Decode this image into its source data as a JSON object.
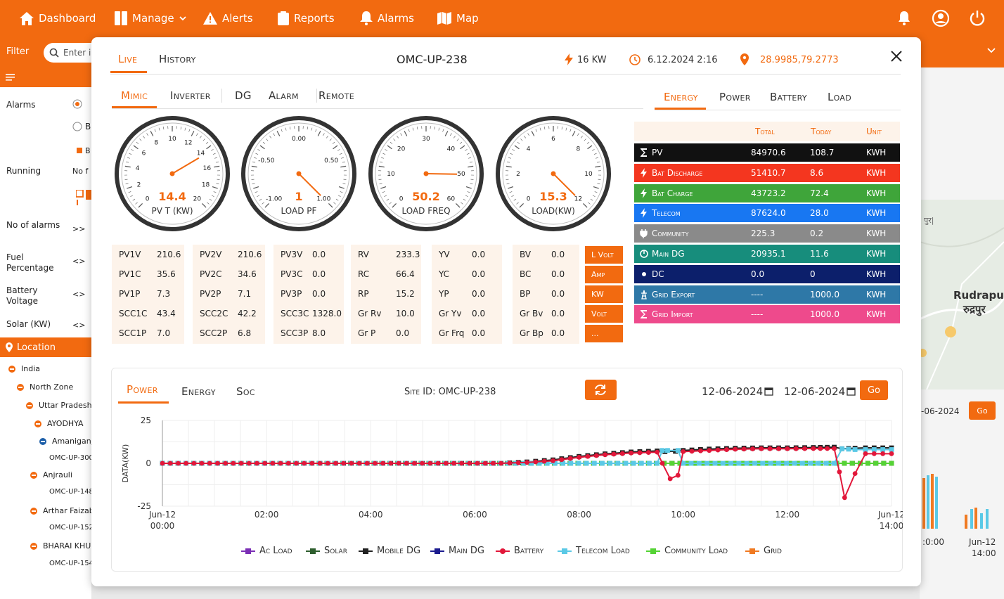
{
  "topbar": {
    "nav": [
      {
        "label": "Dashboard",
        "icon": "home-icon"
      },
      {
        "label": "Manage",
        "icon": "book-icon"
      },
      {
        "label": "Alerts",
        "icon": "warning-icon"
      },
      {
        "label": "Reports",
        "icon": "clipboard-icon"
      },
      {
        "label": "Alarms",
        "icon": "bell-icon"
      },
      {
        "label": "Map",
        "icon": "map-icon"
      }
    ]
  },
  "filter": {
    "label": "Filter",
    "placeholder": "Enter i"
  },
  "sidebar": {
    "rows": [
      {
        "label": "Alarms",
        "value": ""
      },
      {
        "label": "Running",
        "value": "No f"
      },
      {
        "label": "No of alarms",
        "value": ">>"
      },
      {
        "label": "Fuel Percentage",
        "value": "<>"
      },
      {
        "label": "Battery Voltage",
        "value": "<>"
      },
      {
        "label": "Solar (KW)",
        "value": "<>"
      }
    ],
    "radio_b": "B",
    "location_label": "Location",
    "tree": [
      "India",
      "North Zone",
      "Uttar Pradesh",
      "AYODHYA",
      "Amaniganj",
      "OMC-UP-300",
      "Anjrauli",
      "OMC-UP-148",
      "Arthar Faizab",
      "OMC-UP-152",
      "BHARAI KHURD",
      "OMC-UP-154"
    ]
  },
  "background": {
    "map_place": "Rudrapur",
    "map_place_hindi": "रुद्रपुर",
    "map_small": "पुर|",
    "date": "-06-2024",
    "go": "Go",
    "axis": [
      ":0:00",
      "Jun-12",
      "14:00"
    ]
  },
  "modal": {
    "tabs": [
      "Live",
      "History"
    ],
    "site_title": "OMC-UP-238",
    "power": "16 KW",
    "datetime": "6.12.2024 2:16",
    "coords": "28.9985,79.2773",
    "subtabs": [
      "Mimic",
      "Inverter",
      "DG",
      "Alarm",
      "Remote"
    ],
    "energy_tabs": [
      "Energy",
      "Power",
      "Battery",
      "Load"
    ],
    "gauges": [
      {
        "label": "PV T (KW)",
        "value": "14.4",
        "ticks": [
          "0",
          "2",
          "4",
          "6",
          "8",
          "10",
          "12",
          "14",
          "16",
          "18",
          "20"
        ],
        "min": 0,
        "max": 20
      },
      {
        "label": "LOAD PF",
        "value": "1",
        "ticks": [
          "-1.00",
          "-0.50",
          "0.00",
          "0.50",
          "1.00"
        ],
        "min": -1,
        "max": 1
      },
      {
        "label": "LOAD FREQ",
        "value": "50.2",
        "ticks": [
          "0",
          "10",
          "20",
          "30",
          "40",
          "50",
          "60"
        ],
        "min": 0,
        "max": 60
      },
      {
        "label": "LOAD(KW)",
        "value": "15.3",
        "ticks": [
          "0",
          "2",
          "4",
          "6",
          "8",
          "10",
          "12"
        ],
        "min": 0,
        "max": 12
      }
    ],
    "grid": [
      [
        [
          "PV1V",
          "210.6"
        ],
        [
          "PV2V",
          "210.6"
        ],
        [
          "PV3V",
          "0.0"
        ],
        [
          "RV",
          "233.3"
        ],
        [
          "YV",
          "0.0"
        ],
        [
          "BV",
          "0.0"
        ]
      ],
      [
        [
          "PV1C",
          "35.6"
        ],
        [
          "PV2C",
          "34.6"
        ],
        [
          "PV3C",
          "0.0"
        ],
        [
          "RC",
          "66.4"
        ],
        [
          "YC",
          "0.0"
        ],
        [
          "BC",
          "0.0"
        ]
      ],
      [
        [
          "PV1P",
          "7.3"
        ],
        [
          "PV2P",
          "7.1"
        ],
        [
          "PV3P",
          "0.0"
        ],
        [
          "RP",
          "15.2"
        ],
        [
          "YP",
          "0.0"
        ],
        [
          "BP",
          "0.0"
        ]
      ],
      [
        [
          "SCC1C",
          "43.4"
        ],
        [
          "SCC2C",
          "42.2"
        ],
        [
          "SCC3C",
          "1328.0"
        ],
        [
          "Gr Rv",
          "10.0"
        ],
        [
          "Gr Yv",
          "0.0"
        ],
        [
          "Gr Bv",
          "0.0"
        ]
      ],
      [
        [
          "SCC1P",
          "7.0"
        ],
        [
          "SCC2P",
          "6.8"
        ],
        [
          "SCC3P",
          "8.0"
        ],
        [
          "Gr P",
          "0.0"
        ],
        [
          "Gr Frq",
          "0.0"
        ],
        [
          "Gr Bp",
          "0.0"
        ]
      ]
    ],
    "unit_buttons": [
      "L Volt",
      "Amp",
      "KW",
      "Volt",
      "..."
    ],
    "energy_table": {
      "headers": [
        "Total",
        "Today",
        "Unit"
      ],
      "rows": [
        {
          "name": "PV",
          "total": "84970.6",
          "today": "108.7",
          "unit": "KWH",
          "color": "#111111",
          "icon": "sigma-icon"
        },
        {
          "name": "Bat Discharge",
          "total": "51410.7",
          "today": "8.6",
          "unit": "KWH",
          "color": "#f4361f",
          "icon": "bolt-icon"
        },
        {
          "name": "Bat Charge",
          "total": "43723.2",
          "today": "72.4",
          "unit": "KWH",
          "color": "#3fa53a",
          "icon": "bolt-icon"
        },
        {
          "name": "Telecom",
          "total": "87624.0",
          "today": "28.0",
          "unit": "KWH",
          "color": "#1877f2",
          "icon": "bolt-icon"
        },
        {
          "name": "Community",
          "total": "225.3",
          "today": "0.2",
          "unit": "KWH",
          "color": "#8a8a8a",
          "icon": "plug-icon"
        },
        {
          "name": "Main DG",
          "total": "20935.1",
          "today": "11.6",
          "unit": "KWH",
          "color": "#178d7c",
          "icon": "power-icon"
        },
        {
          "name": "DC",
          "total": "0.0",
          "today": "0",
          "unit": "KWH",
          "color": "#0c1f6b",
          "icon": "dot-icon"
        },
        {
          "name": "Grid Export",
          "total": "----",
          "today": "1000.0",
          "unit": "KWH",
          "color": "#2e78a7",
          "icon": "tower-icon"
        },
        {
          "name": "Grid Import",
          "total": "----",
          "today": "1000.0",
          "unit": "KWH",
          "color": "#ee4a8c",
          "icon": "sigma-icon"
        }
      ]
    },
    "chart_tabs": [
      "Power",
      "Energy",
      "Soc"
    ],
    "site_id": "Site ID: OMC-UP-238",
    "date_from": "12-06-2024",
    "date_to": "12-06-2024",
    "go": "Go"
  },
  "chart_data": {
    "type": "line",
    "ylabel": "DATA(KW)",
    "ylim": [
      -25,
      25
    ],
    "yticks": [
      "25",
      "0",
      "-25"
    ],
    "xlim": [
      0,
      14
    ],
    "xticks": [
      {
        "t": 0,
        "label": [
          "Jun-12",
          "00:00"
        ]
      },
      {
        "t": 2,
        "label": [
          "02:00"
        ]
      },
      {
        "t": 4,
        "label": [
          "04:00"
        ]
      },
      {
        "t": 6,
        "label": [
          "06:00"
        ]
      },
      {
        "t": 8,
        "label": [
          "08:00"
        ]
      },
      {
        "t": 10,
        "label": [
          "10:00"
        ]
      },
      {
        "t": 12,
        "label": [
          "12:00"
        ]
      },
      {
        "t": 14,
        "label": [
          "Jun-12",
          "14:00"
        ]
      }
    ],
    "legend_position": "bottom",
    "series": [
      {
        "name": "Ac Load",
        "color": "#7b2fb5",
        "x": [
          0,
          14
        ],
        "y": [
          0,
          0
        ]
      },
      {
        "name": "Solar",
        "color": "#2e5e2e",
        "x": [
          0,
          14
        ],
        "y": [
          0,
          0
        ]
      },
      {
        "name": "Mobile DG",
        "color": "#222222",
        "x": [
          0,
          6.5,
          7,
          7.5,
          8,
          8.5,
          9,
          9.5,
          9.65,
          9.85,
          10,
          10.5,
          11,
          11.5,
          12,
          12.5,
          12.9,
          13.05,
          13.3,
          13.5,
          14
        ],
        "y": [
          0,
          0,
          0.8,
          2,
          4,
          5.5,
          6.6,
          7.2,
          6.8,
          7,
          7.5,
          8.3,
          8.8,
          9,
          9,
          9.2,
          9.4,
          8.5,
          8.8,
          9,
          9
        ]
      },
      {
        "name": "Main DG",
        "color": "#1c1c8f",
        "x": [
          0,
          14
        ],
        "y": [
          0,
          0
        ]
      },
      {
        "name": "Battery",
        "color": "#e2173a",
        "x": [
          0,
          6.5,
          7,
          7.5,
          8,
          8.5,
          9,
          9.5,
          9.6,
          9.75,
          9.9,
          10,
          10.5,
          11,
          11.5,
          12,
          12.5,
          12.9,
          13.0,
          13.1,
          13.3,
          13.5,
          14
        ],
        "y": [
          0,
          0,
          0.5,
          1.5,
          3.5,
          5,
          6,
          6.5,
          0,
          -9,
          -7,
          6.8,
          7.5,
          8.2,
          8.5,
          8.5,
          8.6,
          8.6,
          -5,
          -20,
          -6,
          5.6,
          5.6
        ]
      },
      {
        "name": "Telecom Load",
        "color": "#5bc9e6",
        "x": [
          0,
          9.5,
          9.6,
          9.7,
          9.9,
          10,
          12.9,
          13.05,
          13.3,
          13.5,
          14
        ],
        "y": [
          0,
          0,
          7.5,
          7.5,
          7.5,
          0,
          0,
          8.5,
          8,
          8,
          8
        ]
      },
      {
        "name": "Community Load",
        "color": "#55d335",
        "x": [
          0,
          14
        ],
        "y": [
          0,
          0
        ]
      },
      {
        "name": "Grid",
        "color": "#f07a22",
        "x": [
          0,
          14
        ],
        "y": [
          0,
          0
        ]
      }
    ]
  }
}
